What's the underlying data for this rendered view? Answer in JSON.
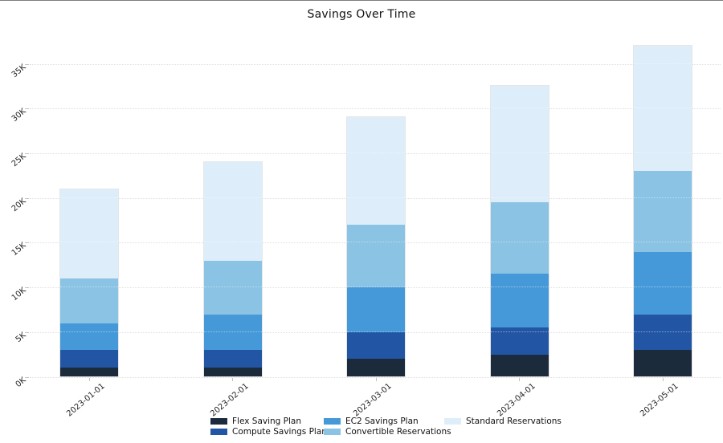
{
  "chart_data": {
    "type": "bar",
    "stacked": true,
    "title": "Savings Over Time",
    "xlabel": "",
    "ylabel": "",
    "categories": [
      "2023-01-01",
      "2023-02-01",
      "2023-03-01",
      "2023-04-01",
      "2023-05-01"
    ],
    "series": [
      {
        "name": "Flex Saving Plan",
        "color": "#1c2b3c",
        "values": [
          1000,
          1000,
          2000,
          2500,
          3000
        ]
      },
      {
        "name": "Compute Savings Plan",
        "color": "#2256a5",
        "values": [
          2000,
          2000,
          3000,
          3000,
          4000
        ]
      },
      {
        "name": "EC2 Savings Plan",
        "color": "#4599d8",
        "values": [
          3000,
          4000,
          5000,
          6000,
          7000
        ]
      },
      {
        "name": "Convertible Reservations",
        "color": "#8ac3e3",
        "values": [
          5000,
          6000,
          7000,
          8000,
          9000
        ]
      },
      {
        "name": "Standard Reservations",
        "color": "#ddeefa",
        "values": [
          10000,
          11000,
          12000,
          13000,
          14000
        ]
      }
    ],
    "yticks": [
      {
        "value": 0,
        "label": "0K"
      },
      {
        "value": 5000,
        "label": "5K"
      },
      {
        "value": 10000,
        "label": "10K"
      },
      {
        "value": 15000,
        "label": "15K"
      },
      {
        "value": 20000,
        "label": "20K"
      },
      {
        "value": 25000,
        "label": "25K"
      },
      {
        "value": 30000,
        "label": "30K"
      },
      {
        "value": 35000,
        "label": "35K"
      }
    ],
    "ylim": [
      0,
      38500
    ],
    "grid": "horizontal-dotted",
    "gridline_color": "#dedede",
    "tick_label_rotation_deg": -40,
    "legend_position": "bottom-center",
    "legend_columns": [
      [
        0,
        1
      ],
      [
        2,
        3
      ],
      [
        4
      ]
    ]
  }
}
